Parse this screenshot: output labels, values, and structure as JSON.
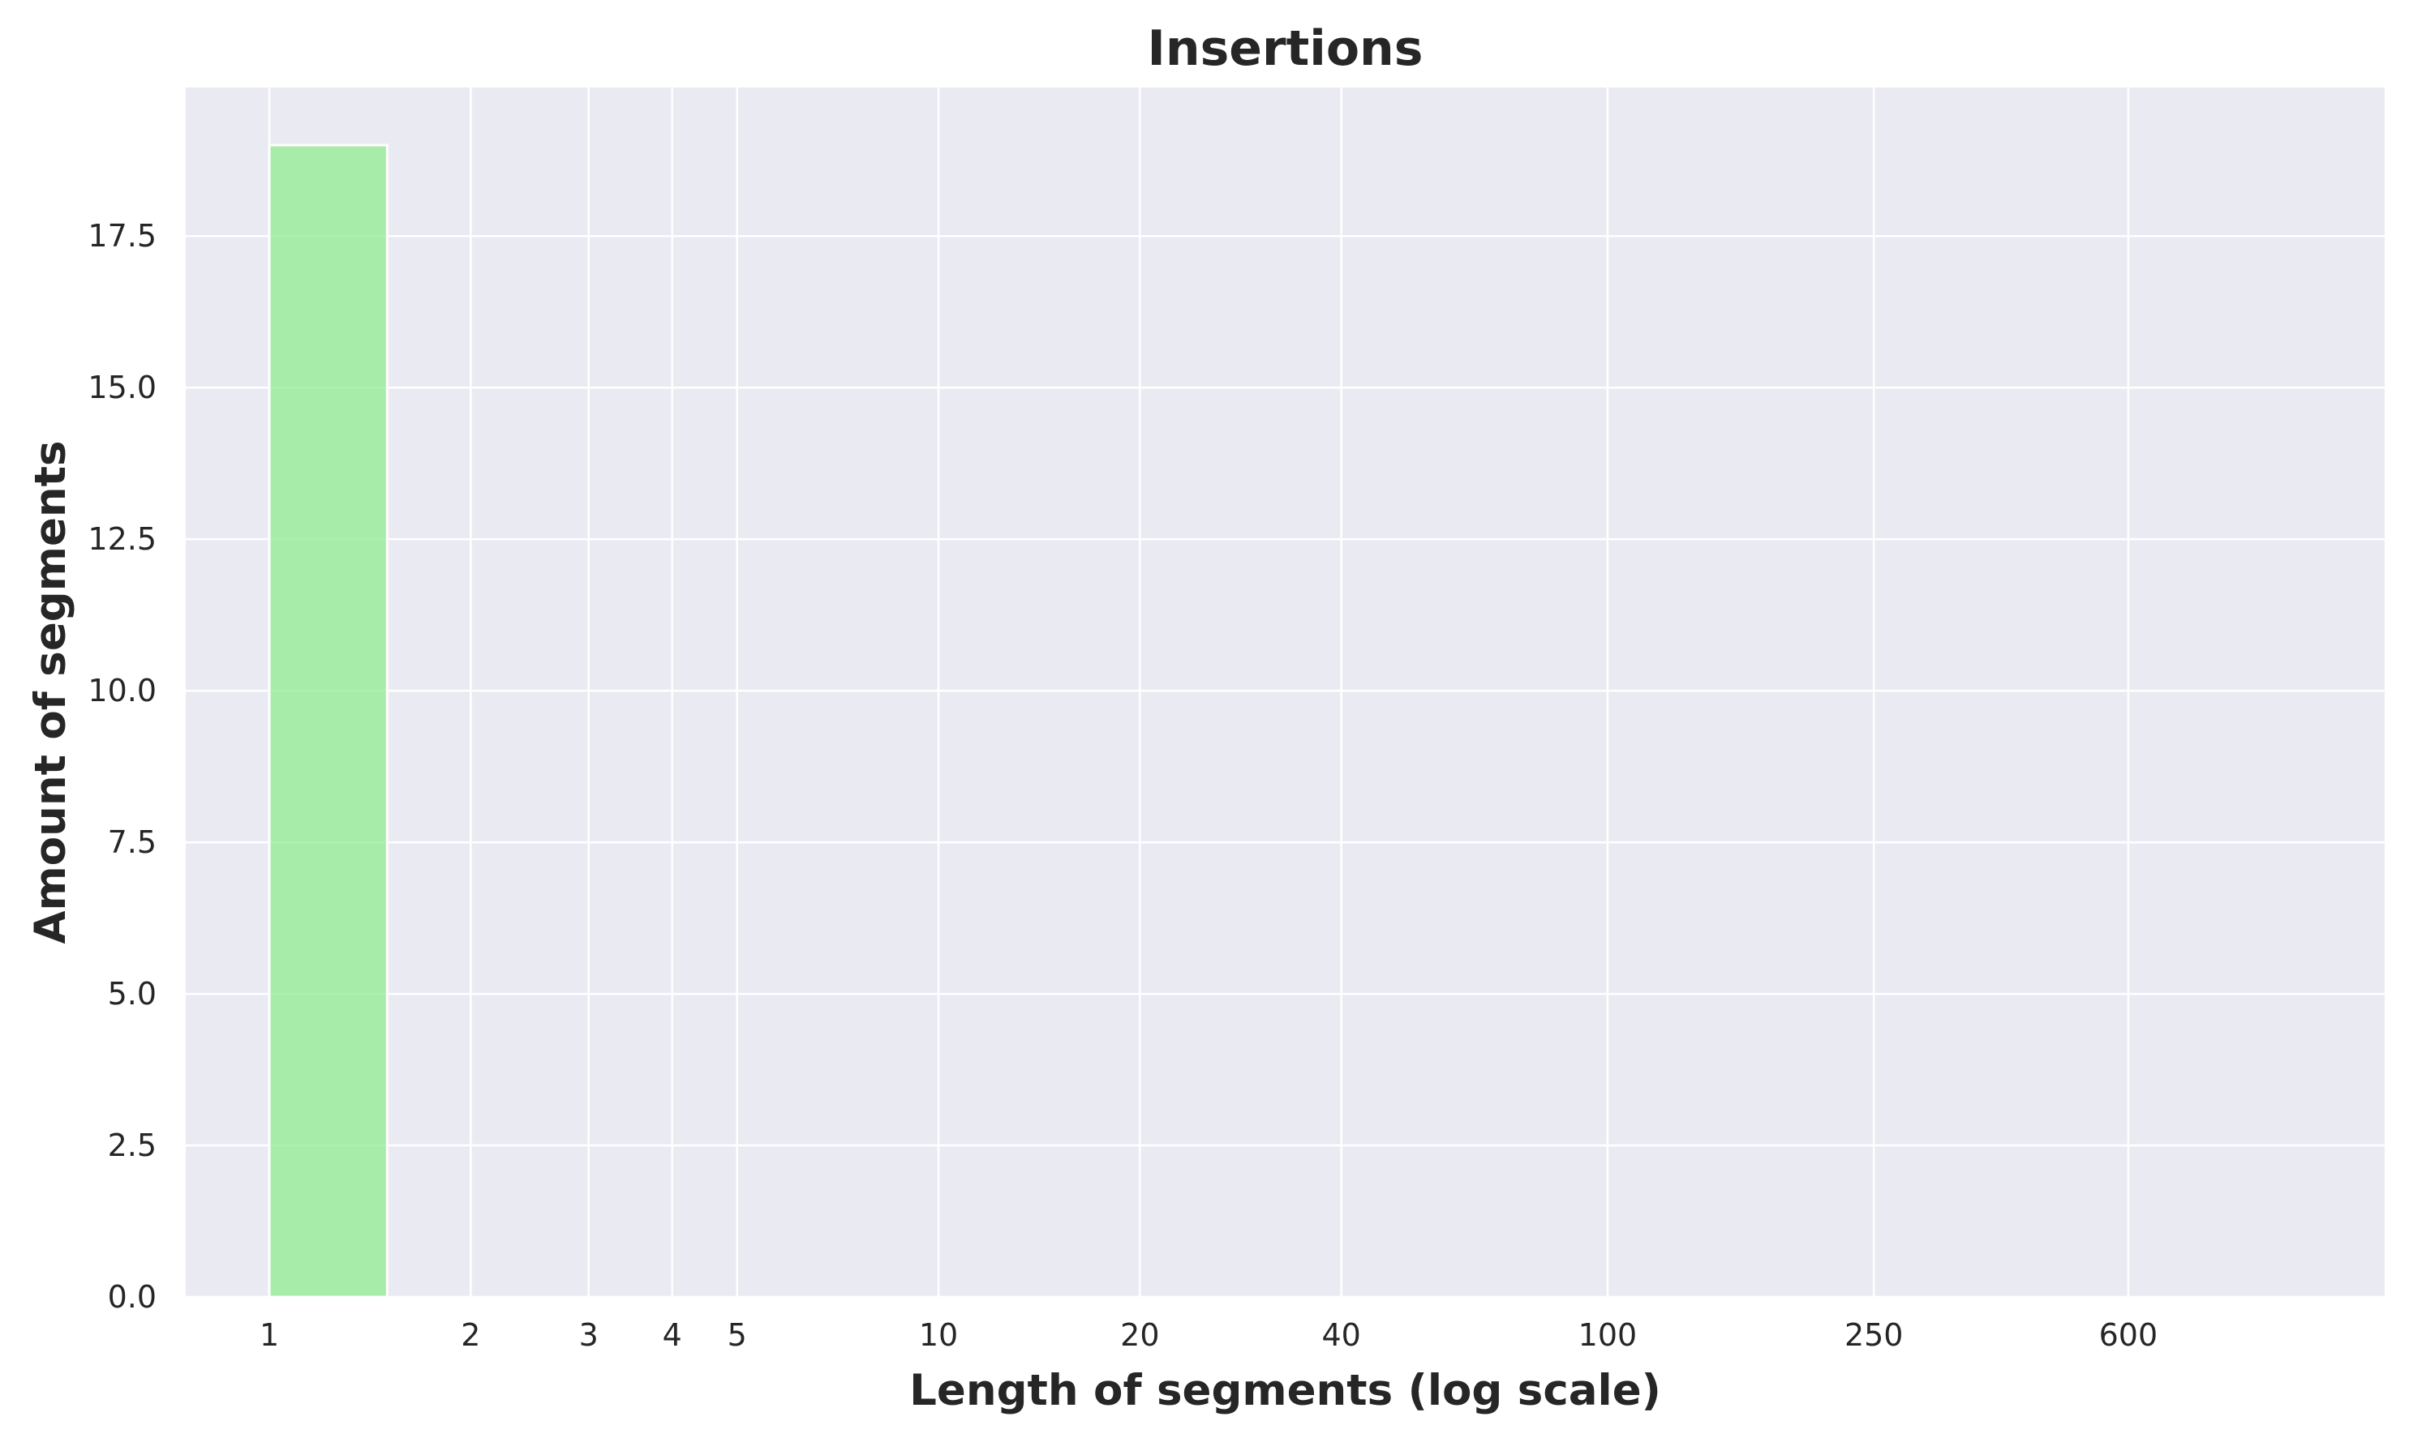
{
  "chart_data": {
    "type": "bar",
    "title": "Insertions",
    "xlabel": "Length of segments (log scale)",
    "ylabel": "Amount of segments",
    "x_scale": "log",
    "x_ticks": [
      1,
      2,
      3,
      4,
      5,
      10,
      20,
      40,
      100,
      250,
      600
    ],
    "x_tick_labels": [
      "1",
      "2",
      "3",
      "4",
      "5",
      "10",
      "20",
      "40",
      "100",
      "250",
      "600"
    ],
    "y_ticks": [
      0,
      2.5,
      5,
      7.5,
      10,
      12.5,
      15,
      17.5
    ],
    "y_tick_labels": [
      "0.0",
      "2.5",
      "5.0",
      "7.5",
      "10.0",
      "12.5",
      "15.0",
      "17.5"
    ],
    "xlim": [
      0.75,
      1450
    ],
    "ylim": [
      0,
      19.95
    ],
    "grid": true,
    "bins": [
      {
        "x_start": 1,
        "x_end": 1.5,
        "value": 19
      }
    ],
    "colors": {
      "bar": "#90ee90",
      "plot_background": "#eaeaf2",
      "grid": "#ffffff",
      "text": "#262626"
    }
  }
}
